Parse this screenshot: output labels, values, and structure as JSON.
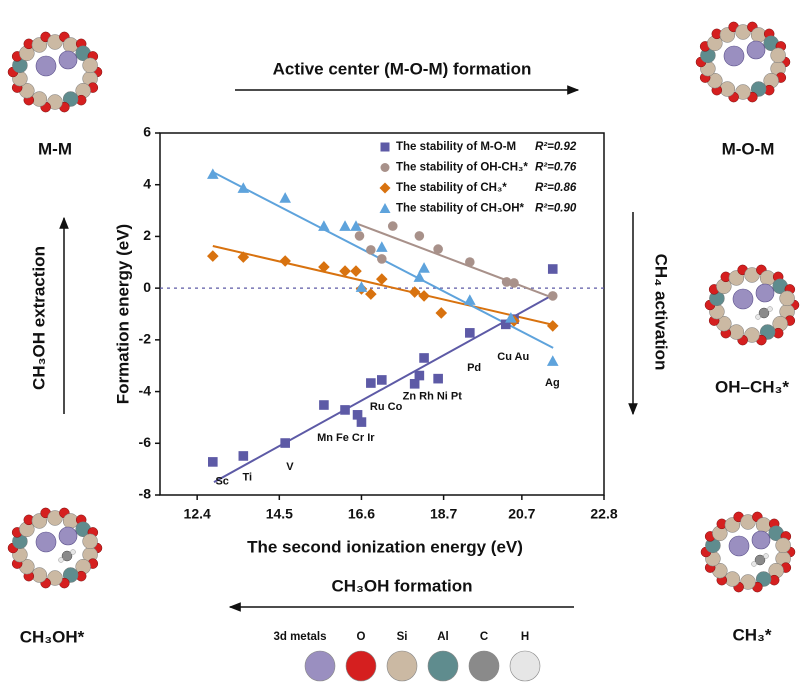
{
  "chart_data": {
    "type": "scatter",
    "xlabel": "The second ionization energy (eV)",
    "ylabel": "Formation energy (eV)",
    "xlim": [
      11.45,
      22.8
    ],
    "xticks": [
      12.4,
      14.5,
      16.6,
      18.7,
      20.7,
      22.8
    ],
    "ylim": [
      -8,
      6
    ],
    "yticks": [
      -8,
      -6,
      -4,
      -2,
      0,
      2,
      4,
      6
    ],
    "hline": 0,
    "series": [
      {
        "name": "The stability of M-O-M",
        "r2": "R²=0.92",
        "marker": "square",
        "color": "#5d5aa6",
        "x": [
          12.8,
          13.58,
          14.65,
          15.64,
          16.18,
          16.5,
          16.6,
          16.84,
          17.12,
          17.96,
          18.08,
          18.2,
          18.56,
          19.37,
          20.29,
          20.5,
          21.49
        ],
        "values": [
          -6.72,
          -6.49,
          -5.99,
          -4.52,
          -4.71,
          -4.9,
          -5.18,
          -3.67,
          -3.55,
          -3.7,
          -3.38,
          -2.7,
          -3.5,
          -1.73,
          -1.4,
          -1.2,
          0.74
        ],
        "fit_x": [
          12.83,
          21.4
        ],
        "fit_y": [
          -7.5,
          -0.34
        ]
      },
      {
        "name": "The stability of OH-CH₃*",
        "r2": "R²=0.76",
        "marker": "circle",
        "color": "#a8918a",
        "x": [
          16.55,
          16.84,
          17.12,
          17.4,
          18.08,
          18.56,
          19.37,
          20.31,
          20.5,
          21.49
        ],
        "values": [
          2.02,
          1.48,
          1.13,
          2.4,
          2.02,
          1.51,
          1.01,
          0.24,
          0.2,
          -0.3
        ],
        "fit_x": [
          16.51,
          21.5
        ],
        "fit_y": [
          2.48,
          -0.38
        ]
      },
      {
        "name": "The stability of CH₃*",
        "r2": "R²=0.86",
        "marker": "diamond",
        "color": "#d8720f",
        "x": [
          12.8,
          13.58,
          14.65,
          15.64,
          16.18,
          16.46,
          16.6,
          16.84,
          17.12,
          17.96,
          18.2,
          18.64,
          20.5,
          21.49
        ],
        "values": [
          1.24,
          1.2,
          1.05,
          0.82,
          0.66,
          0.66,
          -0.03,
          -0.23,
          0.35,
          -0.15,
          -0.3,
          -0.96,
          -1.27,
          -1.46
        ],
        "fit_x": [
          12.8,
          21.5
        ],
        "fit_y": [
          1.63,
          -1.42
        ]
      },
      {
        "name": "The stability of CH₃OH*",
        "r2": "R²=0.90",
        "marker": "triangle",
        "color": "#5ea3dc",
        "x": [
          12.8,
          13.58,
          14.65,
          15.64,
          16.18,
          16.46,
          16.6,
          17.12,
          18.08,
          18.2,
          19.37,
          20.42,
          21.49
        ],
        "values": [
          4.41,
          3.87,
          3.49,
          2.4,
          2.4,
          2.4,
          0.04,
          1.59,
          0.43,
          0.78,
          -0.46,
          -1.15,
          -2.82
        ],
        "fit_x": [
          12.8,
          21.5
        ],
        "fit_y": [
          4.49,
          -2.31
        ]
      }
    ],
    "annotations": [
      {
        "text": "Sc",
        "x": 13.04,
        "y": -7.49
      },
      {
        "text": "Ti",
        "x": 13.68,
        "y": -7.33
      },
      {
        "text": "V",
        "x": 14.77,
        "y": -6.92
      },
      {
        "text": "Mn Fe Cr Ir",
        "x": 16.2,
        "y": -5.8
      },
      {
        "text": "Ru Co",
        "x": 17.23,
        "y": -4.6
      },
      {
        "text": "Zn Rh Ni Pt",
        "x": 18.41,
        "y": -4.2
      },
      {
        "text": "Pd",
        "x": 19.48,
        "y": -3.1
      },
      {
        "text": "Cu Au",
        "x": 20.48,
        "y": -2.66
      },
      {
        "text": "Ag",
        "x": 21.48,
        "y": -3.67
      }
    ]
  },
  "diagram": {
    "states": [
      "M-M",
      "M-O-M",
      "OH–CH₃*",
      "CH₃*",
      "CH₃OH*"
    ],
    "steps": [
      "Active center (M-O-M) formation",
      "CH₄ activation",
      "CH₃OH formation",
      "CH₃OH extraction"
    ],
    "atoms": [
      {
        "label": "3d metals",
        "color": "#9a8fc0"
      },
      {
        "label": "O",
        "color": "#d51f1f"
      },
      {
        "label": "Si",
        "color": "#cbb9a3"
      },
      {
        "label": "Al",
        "color": "#5f8c8e"
      },
      {
        "label": "C",
        "color": "#8a8a8a"
      },
      {
        "label": "H",
        "color": "#e6e6e6"
      }
    ]
  }
}
